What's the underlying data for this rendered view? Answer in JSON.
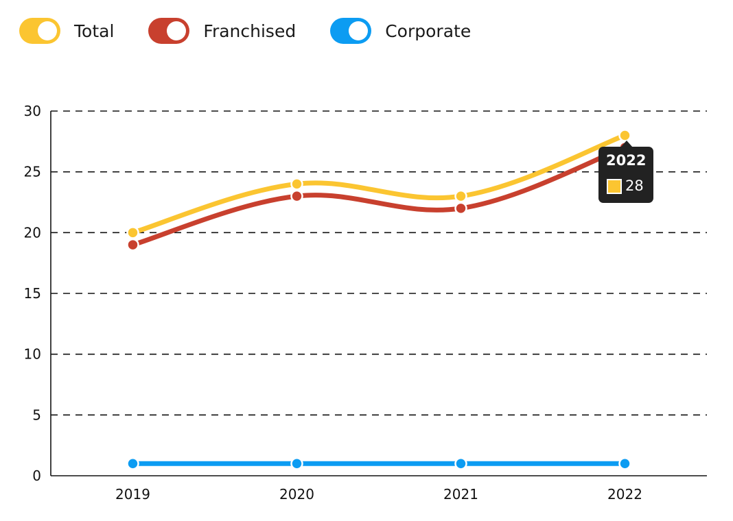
{
  "chart_data": {
    "type": "line",
    "categories": [
      "2019",
      "2020",
      "2021",
      "2022"
    ],
    "series": [
      {
        "name": "Total",
        "color": "#fbc531",
        "values": [
          20,
          24,
          23,
          28
        ]
      },
      {
        "name": "Franchised",
        "color": "#c8402e",
        "values": [
          19,
          23,
          22,
          27
        ]
      },
      {
        "name": "Corporate",
        "color": "#0c9cf2",
        "values": [
          1,
          1,
          1,
          1
        ]
      }
    ],
    "ylim": [
      0,
      30
    ],
    "yticks": [
      "0",
      "5",
      "10",
      "15",
      "20",
      "25",
      "30"
    ],
    "grid": "horizontal dashed",
    "legend_position": "top-left",
    "title": "",
    "xlabel": "",
    "ylabel": ""
  },
  "tooltip": {
    "title": "2022",
    "value": "28",
    "swatch_color": "#fbc531"
  }
}
